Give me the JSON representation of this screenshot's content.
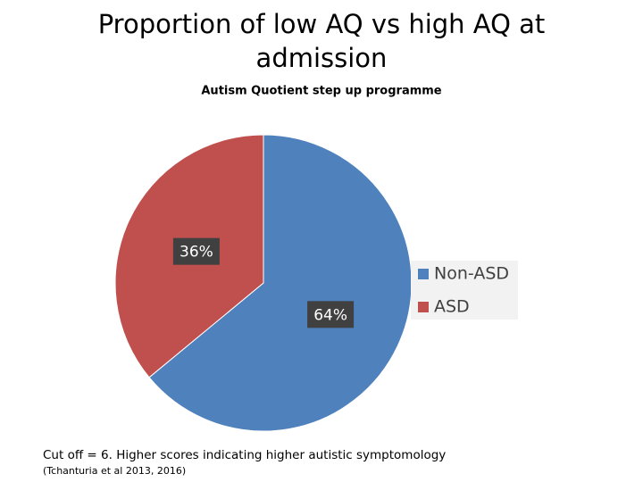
{
  "chart_data": {
    "type": "pie",
    "title": "Proportion of low AQ vs high AQ at admission",
    "subtitle": "Autism Quotient  step up programme",
    "categories": [
      "Non-ASD",
      "ASD"
    ],
    "values": [
      64,
      36
    ],
    "value_labels": [
      "64%",
      "36%"
    ],
    "colors": [
      "#4f81bd",
      "#c0504d"
    ],
    "legend": "right",
    "annotations": [
      "Cut off = 6. Higher scores indicating higher autistic symptomology",
      "(Tchanturia et al 2013, 2016)"
    ]
  }
}
